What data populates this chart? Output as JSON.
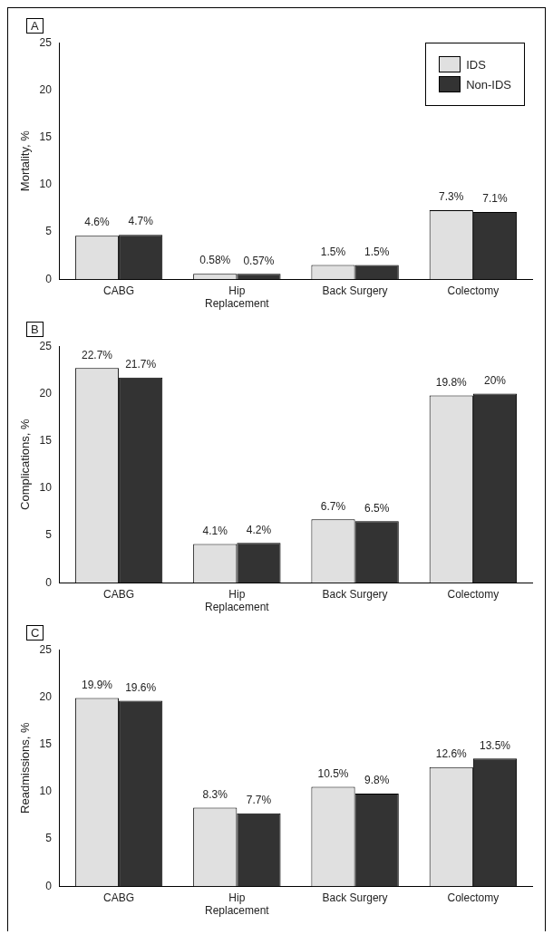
{
  "chart_data": [
    {
      "type": "bar",
      "title": "A",
      "ylabel": "Mortality, %",
      "categories": [
        "CABG",
        "Hip Replacement",
        "Back Surgery",
        "Colectomy"
      ],
      "legend": "top right",
      "ylim": [
        0,
        25
      ],
      "yticks": [
        0,
        5,
        10,
        15,
        20,
        25
      ],
      "grid": false,
      "series": [
        {
          "name": "IDS",
          "color": "#e0e0e0",
          "values": [
            4.6,
            0.58,
            1.5,
            7.3
          ],
          "value_labels": [
            "4.6%",
            "0.58%",
            "1.5%",
            "7.3%"
          ]
        },
        {
          "name": "Non-IDS",
          "color": "#333333",
          "values": [
            4.7,
            0.57,
            1.5,
            7.1
          ],
          "value_labels": [
            "4.7%",
            "0.57%",
            "1.5%",
            "7.1%"
          ]
        }
      ]
    },
    {
      "type": "bar",
      "title": "B",
      "ylabel": "Complications, %",
      "categories": [
        "CABG",
        "Hip Replacement",
        "Back Surgery",
        "Colectomy"
      ],
      "ylim": [
        0,
        25
      ],
      "yticks": [
        0,
        5,
        10,
        15,
        20,
        25
      ],
      "grid": false,
      "series": [
        {
          "color": "#e0e0e0",
          "values": [
            22.7,
            4.1,
            6.7,
            19.8
          ],
          "value_labels": [
            "22.7%",
            "4.1%",
            "6.7%",
            "19.8%"
          ]
        },
        {
          "color": "#333333",
          "values": [
            21.7,
            4.2,
            6.5,
            20
          ],
          "value_labels": [
            "21.7%",
            "4.2%",
            "6.5%",
            "20%"
          ]
        }
      ]
    },
    {
      "type": "bar",
      "title": "C",
      "ylabel": "Readmissions, %",
      "categories": [
        "CABG",
        "Hip Replacement",
        "Back Surgery",
        "Colectomy"
      ],
      "ylim": [
        0,
        25
      ],
      "yticks": [
        0,
        5,
        10,
        15,
        20,
        25
      ],
      "grid": false,
      "series": [
        {
          "color": "#e0e0e0",
          "values": [
            19.9,
            8.3,
            10.5,
            12.6
          ],
          "value_labels": [
            "19.9%",
            "8.3%",
            "10.5%",
            "12.6%"
          ]
        },
        {
          "color": "#333333",
          "values": [
            19.6,
            7.7,
            9.8,
            13.5
          ],
          "value_labels": [
            "19.6%",
            "7.7%",
            "9.8%",
            "13.5%"
          ]
        }
      ]
    }
  ]
}
